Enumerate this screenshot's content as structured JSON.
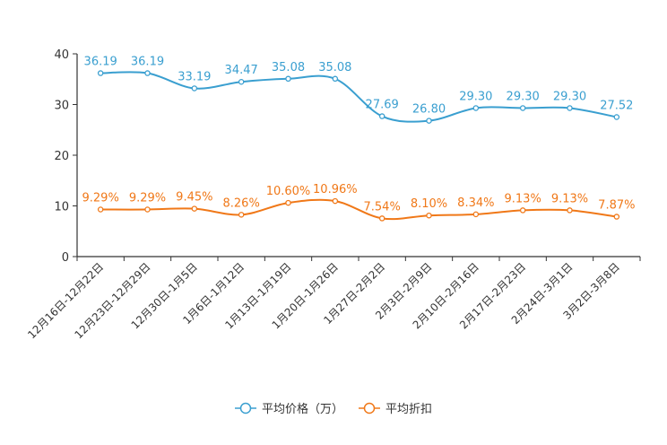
{
  "chart_data": {
    "type": "line",
    "title": "",
    "xlabel": "",
    "ylabel": "",
    "ylim": [
      0,
      40
    ],
    "yticks": [
      0,
      10,
      20,
      30,
      40
    ],
    "grid": false,
    "legend_position": "bottom-center",
    "categories": [
      "12月16日-12月22日",
      "12月23日-12月29日",
      "12月30日-1月5日",
      "1月6日-1月12日",
      "1月13日-1月19日",
      "1月20日-1月26日",
      "1月27日-2月2日",
      "2月3日-2月9日",
      "2月10日-2月16日",
      "2月17日-2月23日",
      "2月24日-3月1日",
      "3月2日-3月8日"
    ],
    "series": [
      {
        "name": "平均价格（万）",
        "color": "#3a9fd0",
        "values": [
          36.19,
          36.19,
          33.19,
          34.47,
          35.08,
          35.08,
          27.69,
          26.8,
          29.3,
          29.3,
          29.3,
          27.52
        ],
        "labels": [
          "36.19",
          "36.19",
          "33.19",
          "34.47",
          "35.08",
          "35.08",
          "27.69",
          "26.80",
          "29.30",
          "29.30",
          "29.30",
          "27.52"
        ]
      },
      {
        "name": "平均折扣",
        "color": "#f07818",
        "values": [
          9.29,
          9.29,
          9.45,
          8.26,
          10.6,
          10.96,
          7.54,
          8.1,
          8.34,
          9.13,
          9.13,
          7.87
        ],
        "labels": [
          "9.29%",
          "9.29%",
          "9.45%",
          "8.26%",
          "10.60%",
          "10.96%",
          "7.54%",
          "8.10%",
          "8.34%",
          "9.13%",
          "9.13%",
          "7.87%"
        ]
      }
    ]
  }
}
